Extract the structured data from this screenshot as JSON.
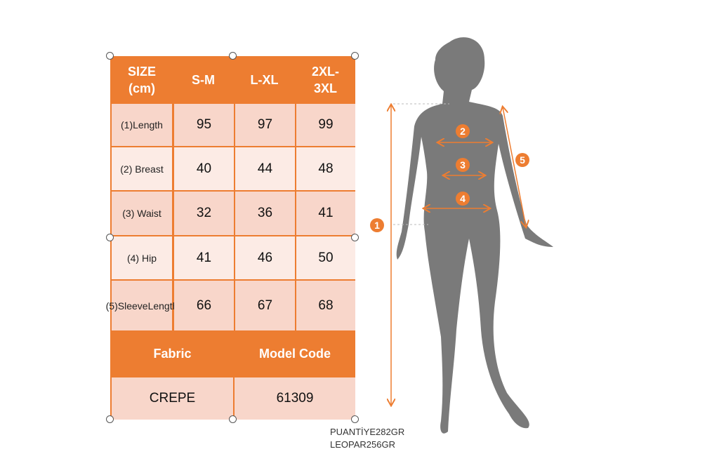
{
  "table": {
    "header": [
      "SIZE (cm)",
      "S-M",
      "L-XL",
      "2XL-3XL"
    ],
    "header_lines": [
      [
        "SIZE",
        "(cm)"
      ],
      [
        "S-M"
      ],
      [
        "L-XL"
      ],
      [
        "2XL-",
        "3XL"
      ]
    ],
    "rows": [
      {
        "label_lines": [
          "(1)",
          "Length"
        ],
        "values": [
          "95",
          "97",
          "99"
        ]
      },
      {
        "label_lines": [
          "(2) Breast"
        ],
        "values": [
          "40",
          "44",
          "48"
        ]
      },
      {
        "label_lines": [
          "(3) Waist"
        ],
        "values": [
          "32",
          "36",
          "41"
        ]
      },
      {
        "label_lines": [
          "(4) Hip"
        ],
        "values": [
          "41",
          "46",
          "50"
        ]
      },
      {
        "label_lines": [
          "(5)",
          "Sleeve",
          "Length"
        ],
        "values": [
          "66",
          "67",
          "68"
        ]
      }
    ],
    "fabric_label": "Fabric",
    "model_code_label": "Model Code",
    "fabric_value": "CREPE",
    "model_code_value": "61309"
  },
  "notes": [
    "PUANTİYE282GR",
    "LEOPAR256GR"
  ],
  "figure_markers": [
    "1",
    "2",
    "3",
    "4",
    "5"
  ],
  "colors": {
    "accent": "#ed7d31",
    "row_dark": "#f8d6ca",
    "row_light": "#fcebe5",
    "silhouette": "#7a7a7a"
  }
}
